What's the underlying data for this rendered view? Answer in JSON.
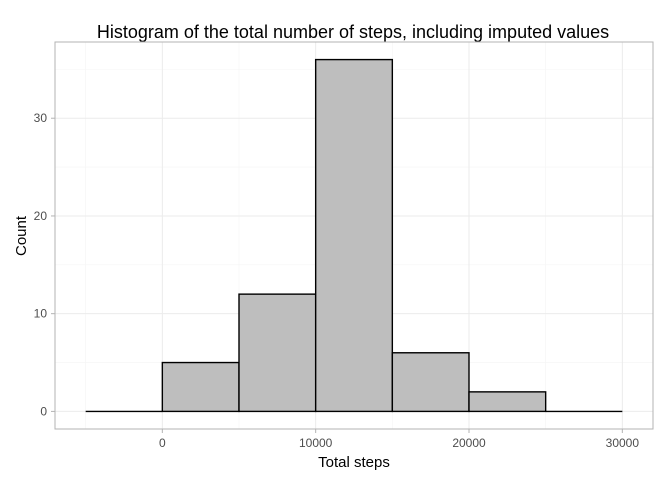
{
  "chart_data": {
    "type": "bar",
    "title": "Histogram of the total number of steps, including imputed values",
    "xlabel": "Total steps",
    "ylabel": "Count",
    "bins": [
      {
        "x0": -5000,
        "x1": 0,
        "count": 0
      },
      {
        "x0": 0,
        "x1": 5000,
        "count": 5
      },
      {
        "x0": 5000,
        "x1": 10000,
        "count": 12
      },
      {
        "x0": 10000,
        "x1": 15000,
        "count": 36
      },
      {
        "x0": 15000,
        "x1": 20000,
        "count": 6
      },
      {
        "x0": 20000,
        "x1": 25000,
        "count": 2
      },
      {
        "x0": 25000,
        "x1": 30000,
        "count": 0
      }
    ],
    "xlim": [
      -7000,
      32000
    ],
    "ylim": [
      -1.8,
      37.8
    ],
    "xticks": [
      {
        "value": 0,
        "label": "0"
      },
      {
        "value": 10000,
        "label": "10000"
      },
      {
        "value": 20000,
        "label": "20000"
      },
      {
        "value": 30000,
        "label": "30000"
      }
    ],
    "yticks": [
      {
        "value": 0,
        "label": "0"
      },
      {
        "value": 10,
        "label": "10"
      },
      {
        "value": 20,
        "label": "20"
      },
      {
        "value": 30,
        "label": "30"
      }
    ],
    "xminor": [
      -5000,
      5000,
      15000,
      25000
    ],
    "yminor": [
      5,
      15,
      25,
      35
    ],
    "grid": true,
    "colors": {
      "bar_fill": "#bebebe",
      "bar_stroke": "#000000"
    }
  }
}
